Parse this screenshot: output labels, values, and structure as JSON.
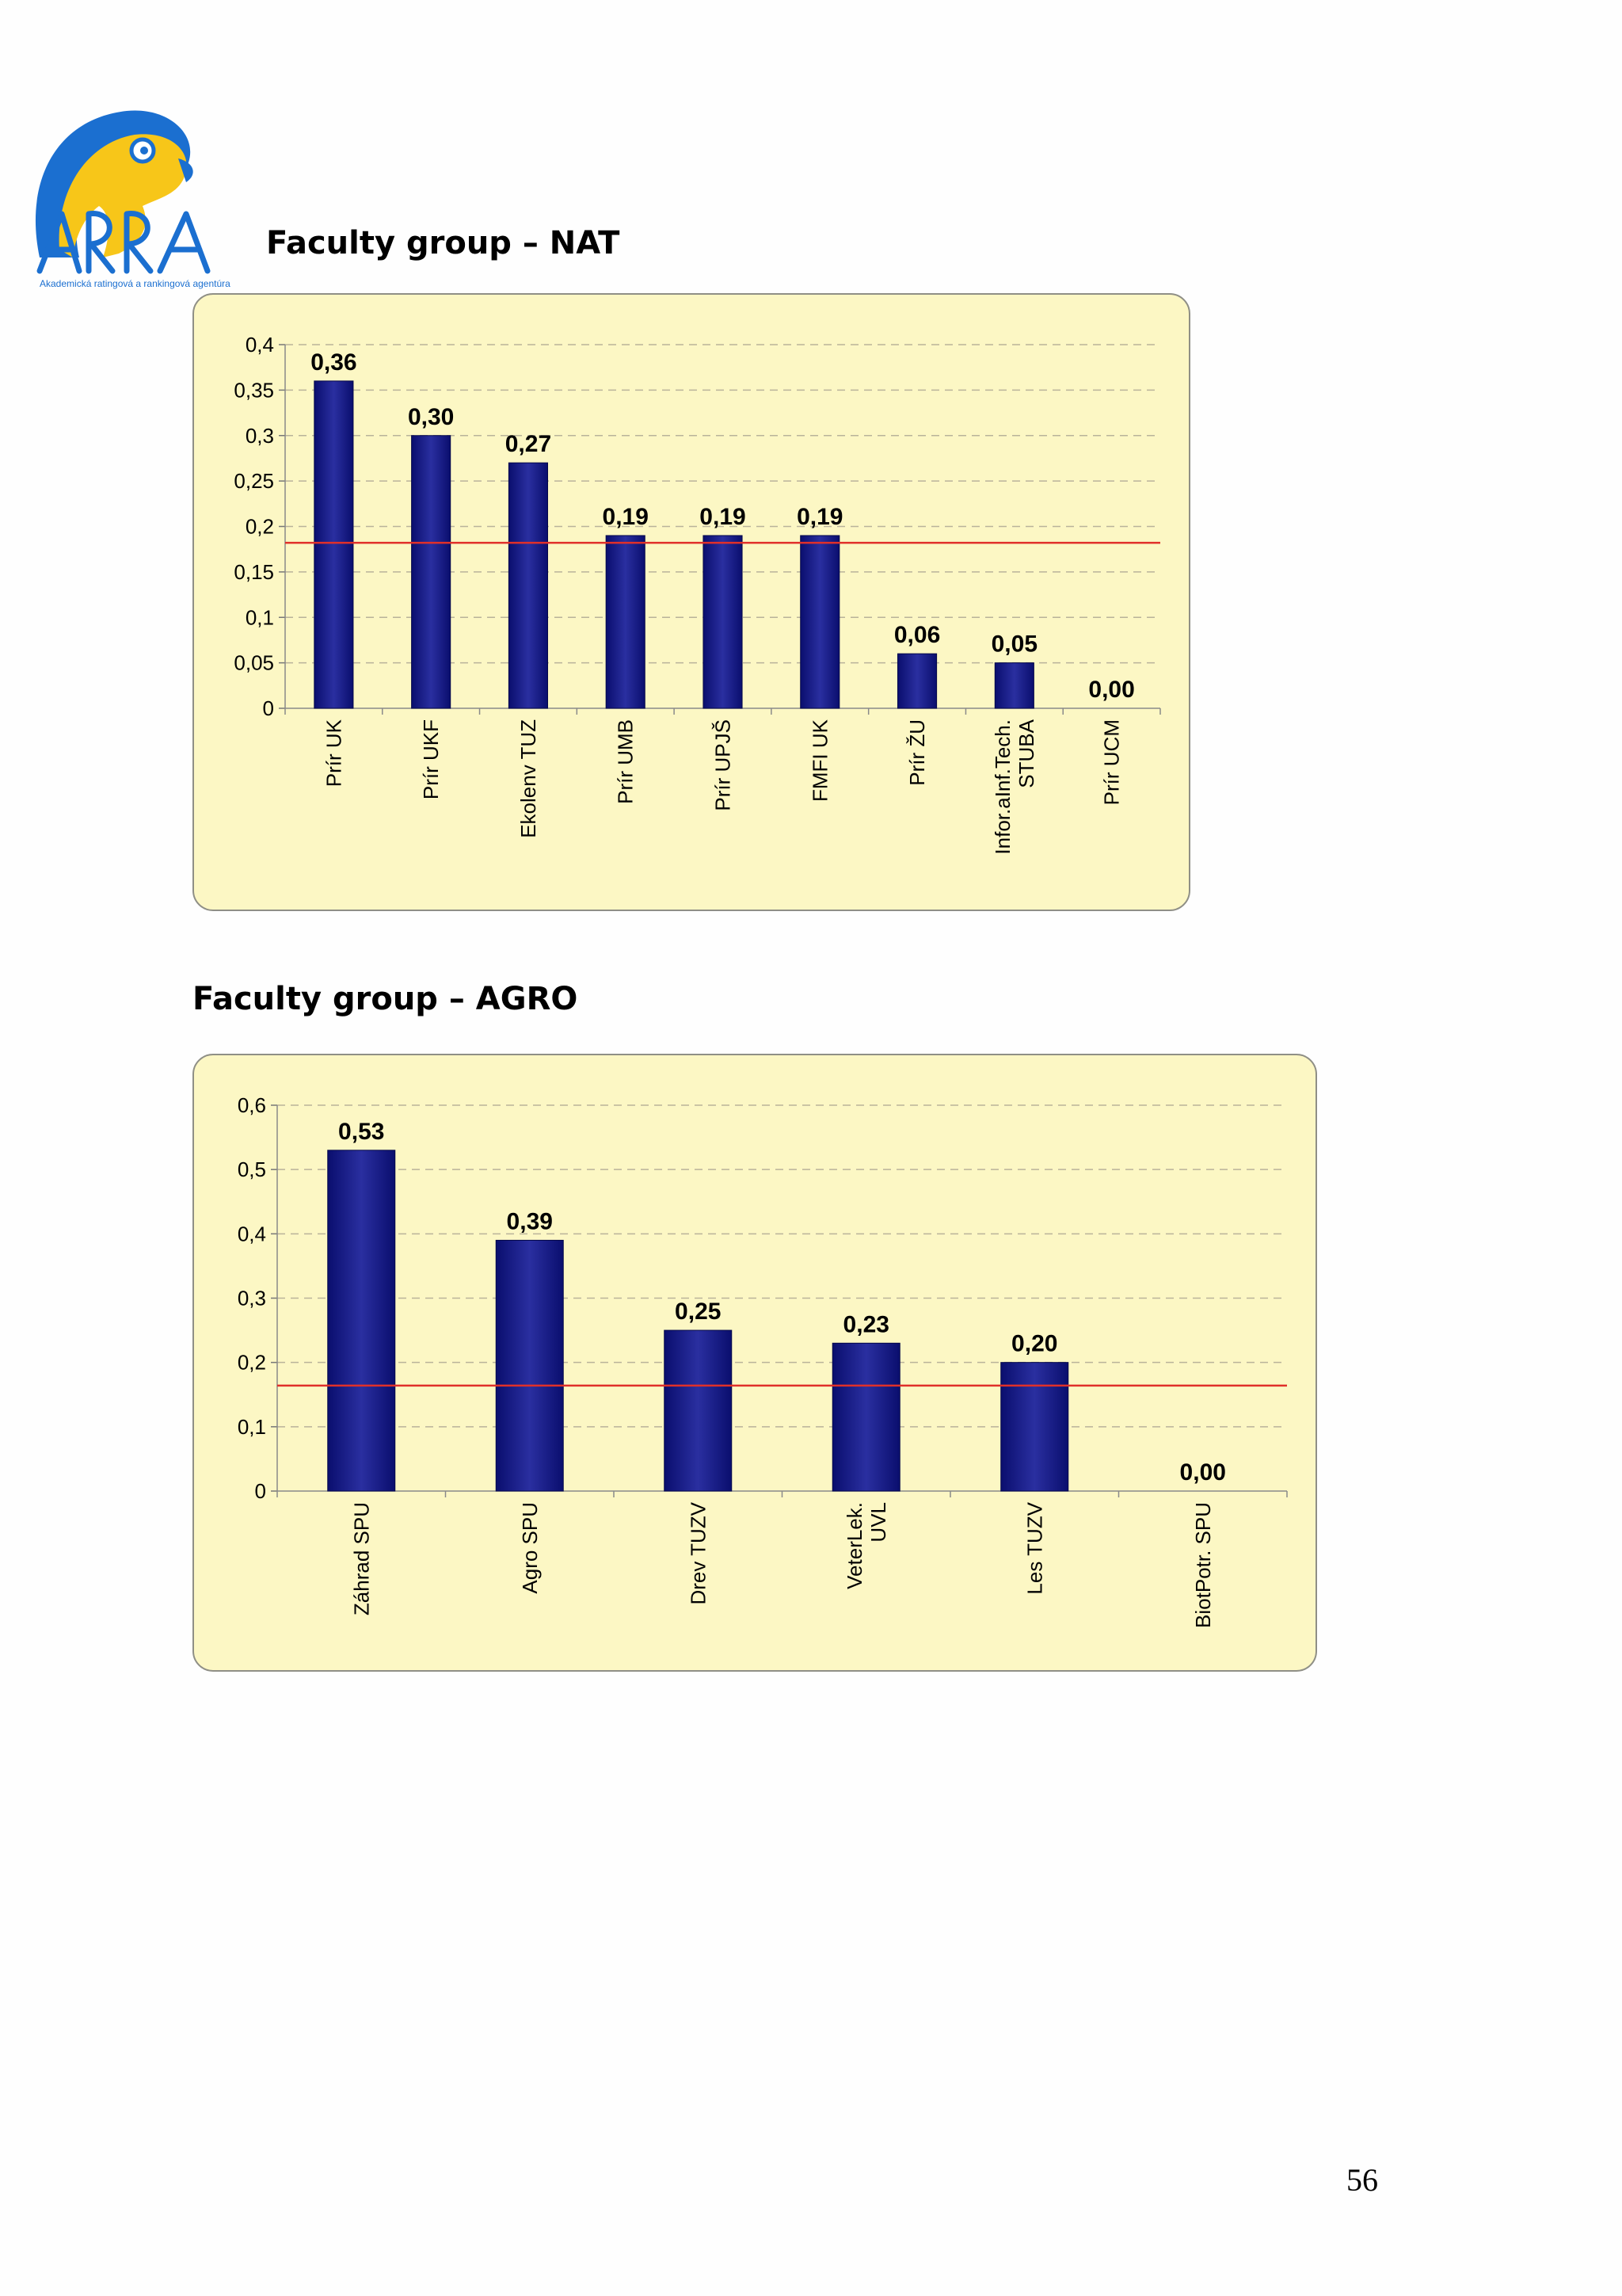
{
  "logo": {
    "text": "ARRA",
    "tagline": "Akademická ratingová a rankingová agentúra",
    "colors": {
      "blue": "#1b6fd0",
      "yellow": "#f7c619"
    }
  },
  "sections": [
    {
      "title": "Faculty group – NAT"
    },
    {
      "title": "Faculty group – AGRO"
    }
  ],
  "page_number": "56",
  "chart_data": [
    {
      "type": "bar",
      "categories": [
        "Prír UK",
        "Prír UKF",
        "Ekolenv TUZ",
        "Prír UMB",
        "Prír UPJŠ",
        "FMFI UK",
        "Prír ŽU",
        "Infor.aInf.Tech. STUBA",
        "Prír UCM"
      ],
      "values": [
        0.36,
        0.3,
        0.27,
        0.19,
        0.19,
        0.19,
        0.06,
        0.05,
        0.0
      ],
      "value_labels": [
        "0,36",
        "0,30",
        "0,27",
        "0,19",
        "0,19",
        "0,19",
        "0,06",
        "0,05",
        "0,00"
      ],
      "yticks": [
        "0",
        "0,05",
        "0,1",
        "0,15",
        "0,2",
        "0,25",
        "0,3",
        "0,35",
        "0,4"
      ],
      "ylim": [
        0,
        0.4
      ],
      "reference_line": 0.182,
      "grid": "dashed horizontal",
      "colors": {
        "bar": "#0a0e6e",
        "bar_highlight": "#2a2fa0",
        "reference_line": "#e0302a",
        "background": "#fcf7c4"
      }
    },
    {
      "type": "bar",
      "categories": [
        "Záhrad SPU",
        "Agro SPU",
        "Drev TUZV",
        "VeterLek. UVL",
        "Les TUZV",
        "BiotPotr. SPU"
      ],
      "values": [
        0.53,
        0.39,
        0.25,
        0.23,
        0.2,
        0.0
      ],
      "value_labels": [
        "0,53",
        "0,39",
        "0,25",
        "0,23",
        "0,20",
        "0,00"
      ],
      "yticks": [
        "0",
        "0,1",
        "0,2",
        "0,3",
        "0,4",
        "0,5",
        "0,6"
      ],
      "ylim": [
        0,
        0.6
      ],
      "reference_line": 0.164,
      "grid": "dashed horizontal",
      "colors": {
        "bar": "#0a0e6e",
        "bar_highlight": "#2a2fa0",
        "reference_line": "#e0302a",
        "background": "#fcf7c4"
      }
    }
  ]
}
